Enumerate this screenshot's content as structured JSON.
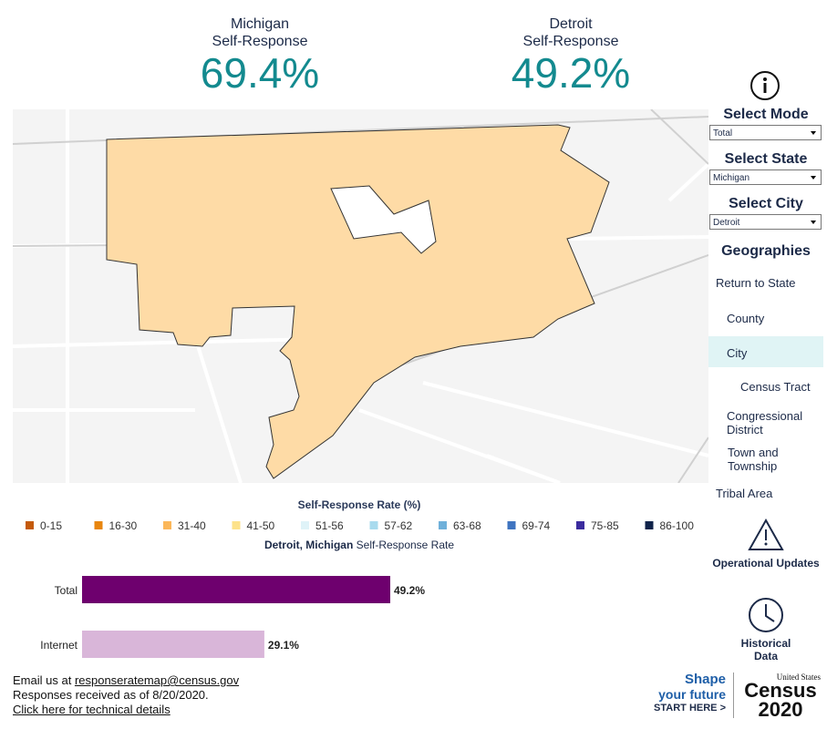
{
  "header": {
    "state": {
      "name": "Michigan",
      "label": "Self-Response",
      "value": "69.4%"
    },
    "city": {
      "name": "Detroit",
      "label": "Self-Response",
      "value": "49.2%"
    }
  },
  "map": {
    "fill": "#fedba6",
    "legend": {
      "title": "Self-Response Rate (%)",
      "items": [
        {
          "label": "0-15",
          "color": "#c45a0a"
        },
        {
          "label": "16-30",
          "color": "#e8860f"
        },
        {
          "label": "31-40",
          "color": "#fbb75a"
        },
        {
          "label": "41-50",
          "color": "#fde28a"
        },
        {
          "label": "51-56",
          "color": "#dff3f8"
        },
        {
          "label": "57-62",
          "color": "#a9dbee"
        },
        {
          "label": "63-68",
          "color": "#6fb0da"
        },
        {
          "label": "69-74",
          "color": "#3f74c0"
        },
        {
          "label": "75-85",
          "color": "#3b2c9e"
        },
        {
          "label": "86-100",
          "color": "#10234a"
        }
      ]
    }
  },
  "chart_data": {
    "type": "bar",
    "orientation": "horizontal",
    "title_place": "Detroit, Michigan",
    "title": "Self-Response Rate",
    "categories": [
      "Total",
      "Internet"
    ],
    "values": [
      49.2,
      29.1
    ],
    "value_labels": [
      "49.2%",
      "29.1%"
    ],
    "colors": [
      "#6e006e",
      "#d9b6d9"
    ],
    "xlim": [
      0,
      100
    ]
  },
  "sidebar": {
    "selects": [
      {
        "label": "Select Mode",
        "value": "Total"
      },
      {
        "label": "Select State",
        "value": "Michigan"
      },
      {
        "label": "Select City",
        "value": "Detroit"
      }
    ],
    "geographies_title": "Geographies",
    "geographies": [
      "Return to State",
      "County",
      "City",
      "Census Tract",
      "Congressional District",
      "Town and Township",
      "Tribal Area"
    ],
    "selected": "City",
    "operational": "Operational Updates",
    "historical": "Historical Data"
  },
  "footer": {
    "email_prefix": "Email us at",
    "email": "responseratemap@census.gov",
    "received": "Responses received as of 8/20/2020.",
    "technical": "Click here for technical details"
  },
  "logo": {
    "shape": "Shape",
    "future": "your future",
    "start": "START HERE >",
    "us": "United States",
    "census": "Census",
    "year": "2020"
  }
}
